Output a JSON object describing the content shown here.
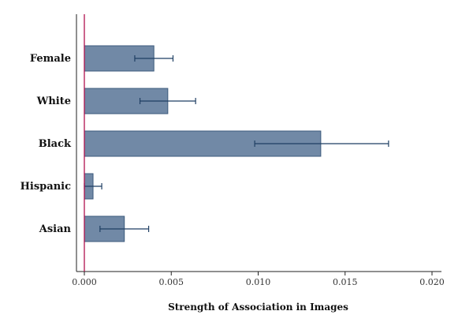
{
  "chart_data": {
    "type": "bar",
    "orientation": "horizontal",
    "title": "",
    "xlabel": "Strength of Association in Images",
    "ylabel": "",
    "categories": [
      "Female",
      "White",
      "Black",
      "Hispanic",
      "Asian"
    ],
    "values": [
      0.004,
      0.0048,
      0.0136,
      0.0005,
      0.0023
    ],
    "error_low": [
      0.0029,
      0.0032,
      0.0098,
      0.0,
      0.0009
    ],
    "error_high": [
      0.0051,
      0.0064,
      0.0175,
      0.001,
      0.0037
    ],
    "xlim": [
      0.0,
      0.02
    ],
    "xticks": [
      "0.000",
      "0.005",
      "0.010",
      "0.015",
      "0.020"
    ],
    "reference_line_x": 0.0,
    "grid": false,
    "colors": {
      "bar_fill": "#7189a6",
      "bar_stroke": "#3c5a7c",
      "error_bar": "#1f3f63",
      "reference_line": "#b0124f",
      "axis": "#222222"
    }
  }
}
